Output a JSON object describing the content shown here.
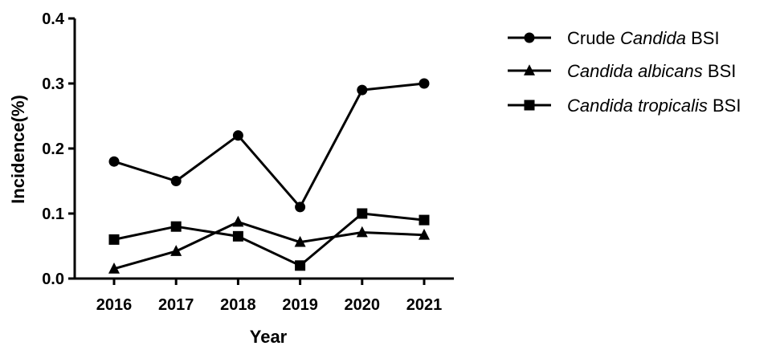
{
  "chart_data": {
    "type": "line",
    "xlabel": "Year",
    "ylabel": "Incidence(%)",
    "categories": [
      "2016",
      "2017",
      "2018",
      "2019",
      "2020",
      "2021"
    ],
    "ylim": [
      0,
      0.4
    ],
    "yticks": [
      "0.0",
      "0.1",
      "0.2",
      "0.3",
      "0.4"
    ],
    "legend_position": "right",
    "series": [
      {
        "name": "Crude Candida  BSI",
        "name_parts": [
          {
            "text": "Crude ",
            "italic": false
          },
          {
            "text": "Candida",
            "italic": true
          },
          {
            "text": "  BSI",
            "italic": false
          }
        ],
        "marker": "circle",
        "values": [
          0.18,
          0.15,
          0.22,
          0.11,
          0.29,
          0.3
        ]
      },
      {
        "name": "Candida albicans BSI",
        "name_parts": [
          {
            "text": "Candida albicans",
            "italic": true
          },
          {
            "text": " BSI",
            "italic": false
          }
        ],
        "marker": "triangle",
        "values": [
          0.015,
          0.042,
          0.087,
          0.056,
          0.071,
          0.067
        ]
      },
      {
        "name": "Candida tropicalis BSI",
        "name_parts": [
          {
            "text": "Candida tropicalis",
            "italic": true
          },
          {
            "text": " BSI",
            "italic": false
          }
        ],
        "marker": "square",
        "values": [
          0.06,
          0.08,
          0.065,
          0.02,
          0.1,
          0.09
        ]
      }
    ],
    "color": "#000000"
  }
}
